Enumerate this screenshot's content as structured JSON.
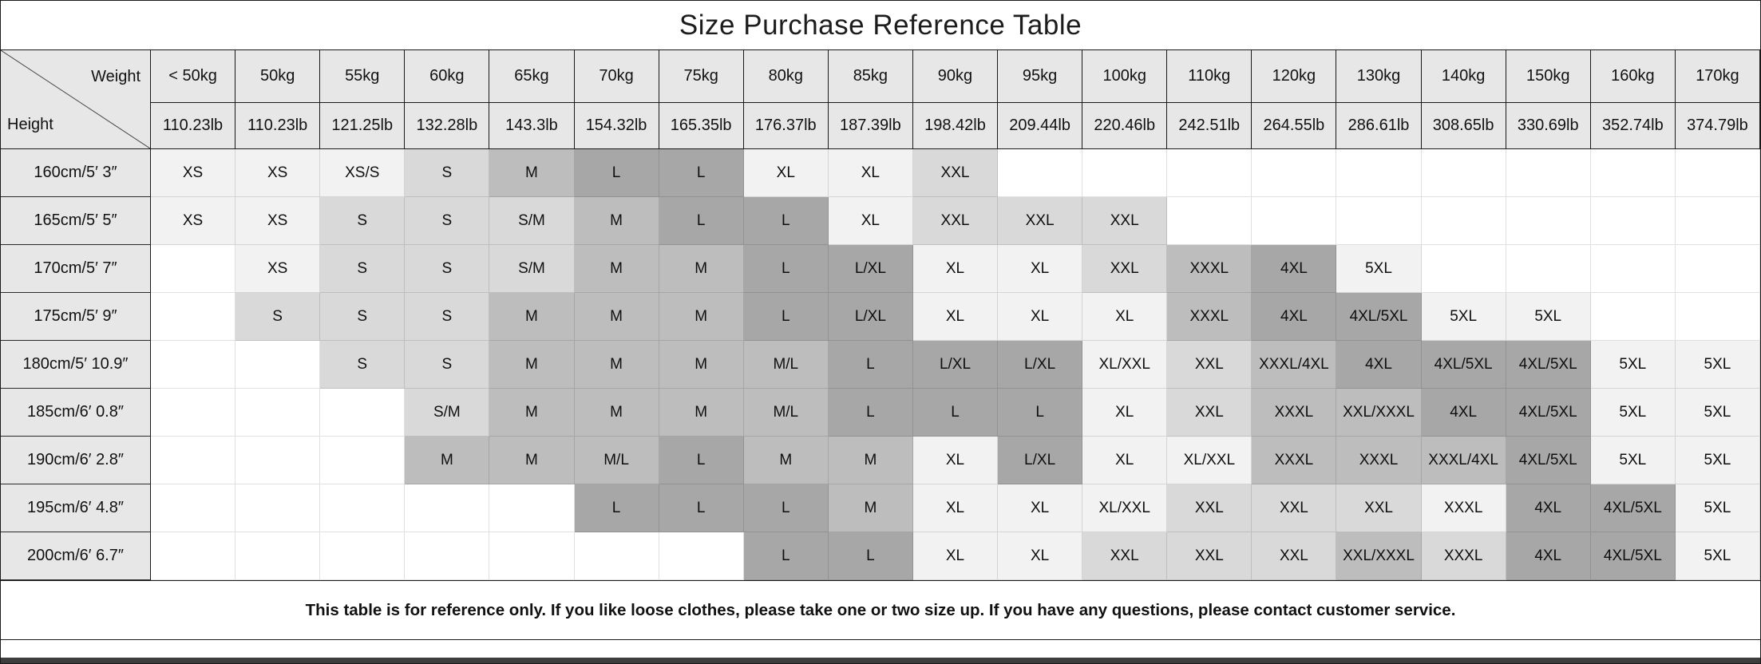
{
  "title": "Size Purchase Reference Table",
  "corner": {
    "weight_label": "Weight",
    "height_label": "Height"
  },
  "footer": "This table is for reference only. If you like loose clothes, please take one or two size up. If you have any questions, please contact customer service.",
  "palette": {
    "f2": "#f2f2f2",
    "d9": "#d9d9d9",
    "bf": "#bdbdbd",
    "a6": "#a7a7a7",
    "empty": "#ffffff",
    "header_bg": "#e7e7e7",
    "grid_line": "#cccccc",
    "frame_line": "#1a1a1a",
    "bottom_bar": "#3d3d3d"
  },
  "chart_data": {
    "type": "table",
    "title": "Size Purchase Reference Table",
    "columns_kg": [
      "< 50kg",
      "50kg",
      "55kg",
      "60kg",
      "65kg",
      "70kg",
      "75kg",
      "80kg",
      "85kg",
      "90kg",
      "95kg",
      "100kg",
      "110kg",
      "120kg",
      "130kg",
      "140kg",
      "150kg",
      "160kg",
      "170kg"
    ],
    "columns_lb": [
      "110.23lb",
      "110.23lb",
      "121.25lb",
      "132.28lb",
      "143.3lb",
      "154.32lb",
      "165.35lb",
      "176.37lb",
      "187.39lb",
      "198.42lb",
      "209.44lb",
      "220.46lb",
      "242.51lb",
      "264.55lb",
      "286.61lb",
      "308.65lb",
      "330.69lb",
      "352.74lb",
      "374.79lb"
    ],
    "rows": [
      {
        "height": "160cm/5′ 3″",
        "cells": [
          [
            "XS",
            "f2"
          ],
          [
            "XS",
            "f2"
          ],
          [
            "XS/S",
            "f2"
          ],
          [
            "S",
            "d9"
          ],
          [
            "M",
            "bf"
          ],
          [
            "L",
            "a6"
          ],
          [
            "L",
            "a6"
          ],
          [
            "XL",
            "f2"
          ],
          [
            "XL",
            "f2"
          ],
          [
            "XXL",
            "d9"
          ],
          [
            "",
            ""
          ],
          [
            "",
            ""
          ],
          [
            "",
            ""
          ],
          [
            "",
            ""
          ],
          [
            "",
            ""
          ],
          [
            "",
            ""
          ],
          [
            "",
            ""
          ],
          [
            "",
            ""
          ],
          [
            "",
            ""
          ]
        ]
      },
      {
        "height": "165cm/5′ 5″",
        "cells": [
          [
            "XS",
            "f2"
          ],
          [
            "XS",
            "f2"
          ],
          [
            "S",
            "d9"
          ],
          [
            "S",
            "d9"
          ],
          [
            "S/M",
            "d9"
          ],
          [
            "M",
            "bf"
          ],
          [
            "L",
            "a6"
          ],
          [
            "L",
            "a6"
          ],
          [
            "XL",
            "f2"
          ],
          [
            "XXL",
            "d9"
          ],
          [
            "XXL",
            "d9"
          ],
          [
            "XXL",
            "d9"
          ],
          [
            "",
            ""
          ],
          [
            "",
            ""
          ],
          [
            "",
            ""
          ],
          [
            "",
            ""
          ],
          [
            "",
            ""
          ],
          [
            "",
            ""
          ],
          [
            "",
            ""
          ]
        ]
      },
      {
        "height": "170cm/5′ 7″",
        "cells": [
          [
            "",
            ""
          ],
          [
            "XS",
            "f2"
          ],
          [
            "S",
            "d9"
          ],
          [
            "S",
            "d9"
          ],
          [
            "S/M",
            "d9"
          ],
          [
            "M",
            "bf"
          ],
          [
            "M",
            "bf"
          ],
          [
            "L",
            "a6"
          ],
          [
            "L/XL",
            "a6"
          ],
          [
            "XL",
            "f2"
          ],
          [
            "XL",
            "f2"
          ],
          [
            "XXL",
            "d9"
          ],
          [
            "XXXL",
            "bf"
          ],
          [
            "4XL",
            "a6"
          ],
          [
            "5XL",
            "f2"
          ],
          [
            "",
            ""
          ],
          [
            "",
            ""
          ],
          [
            "",
            ""
          ],
          [
            "",
            ""
          ]
        ]
      },
      {
        "height": "175cm/5′ 9″",
        "cells": [
          [
            "",
            ""
          ],
          [
            "S",
            "d9"
          ],
          [
            "S",
            "d9"
          ],
          [
            "S",
            "d9"
          ],
          [
            "M",
            "bf"
          ],
          [
            "M",
            "bf"
          ],
          [
            "M",
            "bf"
          ],
          [
            "L",
            "a6"
          ],
          [
            "L/XL",
            "a6"
          ],
          [
            "XL",
            "f2"
          ],
          [
            "XL",
            "f2"
          ],
          [
            "XL",
            "f2"
          ],
          [
            "XXXL",
            "bf"
          ],
          [
            "4XL",
            "a6"
          ],
          [
            "4XL/5XL",
            "a6"
          ],
          [
            "5XL",
            "f2"
          ],
          [
            "5XL",
            "f2"
          ],
          [
            "",
            ""
          ],
          [
            "",
            ""
          ]
        ]
      },
      {
        "height": "180cm/5′ 10.9″",
        "cells": [
          [
            "",
            ""
          ],
          [
            "",
            ""
          ],
          [
            "S",
            "d9"
          ],
          [
            "S",
            "d9"
          ],
          [
            "M",
            "bf"
          ],
          [
            "M",
            "bf"
          ],
          [
            "M",
            "bf"
          ],
          [
            "M/L",
            "bf"
          ],
          [
            "L",
            "a6"
          ],
          [
            "L/XL",
            "a6"
          ],
          [
            "L/XL",
            "a6"
          ],
          [
            "XL/XXL",
            "f2"
          ],
          [
            "XXL",
            "d9"
          ],
          [
            "XXXL/4XL",
            "bf"
          ],
          [
            "4XL",
            "a6"
          ],
          [
            "4XL/5XL",
            "a6"
          ],
          [
            "4XL/5XL",
            "a6"
          ],
          [
            "5XL",
            "f2"
          ],
          [
            "5XL",
            "f2"
          ]
        ]
      },
      {
        "height": "185cm/6′ 0.8″",
        "cells": [
          [
            "",
            ""
          ],
          [
            "",
            ""
          ],
          [
            "",
            ""
          ],
          [
            "S/M",
            "d9"
          ],
          [
            "M",
            "bf"
          ],
          [
            "M",
            "bf"
          ],
          [
            "M",
            "bf"
          ],
          [
            "M/L",
            "bf"
          ],
          [
            "L",
            "a6"
          ],
          [
            "L",
            "a6"
          ],
          [
            "L",
            "a6"
          ],
          [
            "XL",
            "f2"
          ],
          [
            "XXL",
            "d9"
          ],
          [
            "XXXL",
            "bf"
          ],
          [
            "XXL/XXXL",
            "bf"
          ],
          [
            "4XL",
            "a6"
          ],
          [
            "4XL/5XL",
            "a6"
          ],
          [
            "5XL",
            "f2"
          ],
          [
            "5XL",
            "f2"
          ]
        ]
      },
      {
        "height": "190cm/6′ 2.8″",
        "cells": [
          [
            "",
            ""
          ],
          [
            "",
            ""
          ],
          [
            "",
            ""
          ],
          [
            "M",
            "bf"
          ],
          [
            "M",
            "bf"
          ],
          [
            "M/L",
            "bf"
          ],
          [
            "L",
            "a6"
          ],
          [
            "M",
            "bf"
          ],
          [
            "M",
            "bf"
          ],
          [
            "XL",
            "f2"
          ],
          [
            "L/XL",
            "a6"
          ],
          [
            "XL",
            "f2"
          ],
          [
            "XL/XXL",
            "f2"
          ],
          [
            "XXXL",
            "bf"
          ],
          [
            "XXXL",
            "bf"
          ],
          [
            "XXXL/4XL",
            "bf"
          ],
          [
            "4XL/5XL",
            "a6"
          ],
          [
            "5XL",
            "f2"
          ],
          [
            "5XL",
            "f2"
          ]
        ]
      },
      {
        "height": "195cm/6′ 4.8″",
        "cells": [
          [
            "",
            ""
          ],
          [
            "",
            ""
          ],
          [
            "",
            ""
          ],
          [
            "",
            ""
          ],
          [
            "",
            ""
          ],
          [
            "L",
            "a6"
          ],
          [
            "L",
            "a6"
          ],
          [
            "L",
            "a6"
          ],
          [
            "M",
            "bf"
          ],
          [
            "XL",
            "f2"
          ],
          [
            "XL",
            "f2"
          ],
          [
            "XL/XXL",
            "f2"
          ],
          [
            "XXL",
            "d9"
          ],
          [
            "XXL",
            "d9"
          ],
          [
            "XXL",
            "d9"
          ],
          [
            "XXXL",
            "f2"
          ],
          [
            "4XL",
            "a6"
          ],
          [
            "4XL/5XL",
            "a6"
          ],
          [
            "5XL",
            "f2"
          ]
        ]
      },
      {
        "height": "200cm/6′ 6.7″",
        "cells": [
          [
            "",
            ""
          ],
          [
            "",
            ""
          ],
          [
            "",
            ""
          ],
          [
            "",
            ""
          ],
          [
            "",
            ""
          ],
          [
            "",
            ""
          ],
          [
            "",
            ""
          ],
          [
            "L",
            "a6"
          ],
          [
            "L",
            "a6"
          ],
          [
            "XL",
            "f2"
          ],
          [
            "XL",
            "f2"
          ],
          [
            "XXL",
            "d9"
          ],
          [
            "XXL",
            "d9"
          ],
          [
            "XXL",
            "d9"
          ],
          [
            "XXL/XXXL",
            "bf"
          ],
          [
            "XXXL",
            "d9"
          ],
          [
            "4XL",
            "a6"
          ],
          [
            "4XL/5XL",
            "a6"
          ],
          [
            "5XL",
            "f2"
          ]
        ]
      }
    ]
  }
}
